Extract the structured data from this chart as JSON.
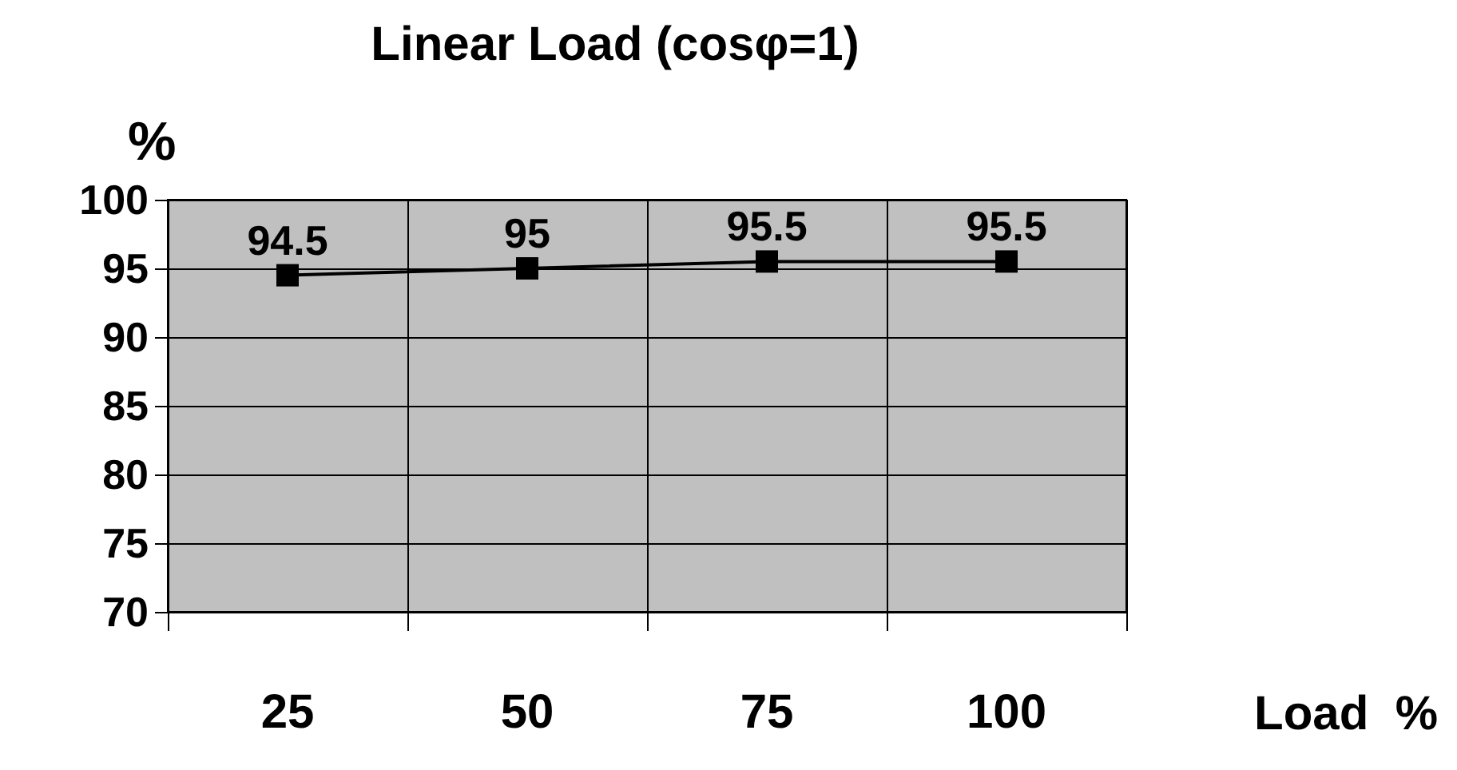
{
  "chart_data": {
    "type": "line",
    "title": "Linear Load (cosφ=1)",
    "xlabel": "Load  %",
    "ylabel": "%",
    "categories": [
      "25",
      "50",
      "75",
      "100"
    ],
    "series": [
      {
        "color": "#000000",
        "values": [
          94.5,
          95,
          95.5,
          95.5
        ]
      }
    ],
    "ylim": [
      70,
      100
    ],
    "yticks": [
      70,
      75,
      80,
      85,
      90,
      95,
      100
    ],
    "grid": true,
    "marker": "square",
    "line_style": "solid",
    "data_labels": true
  }
}
